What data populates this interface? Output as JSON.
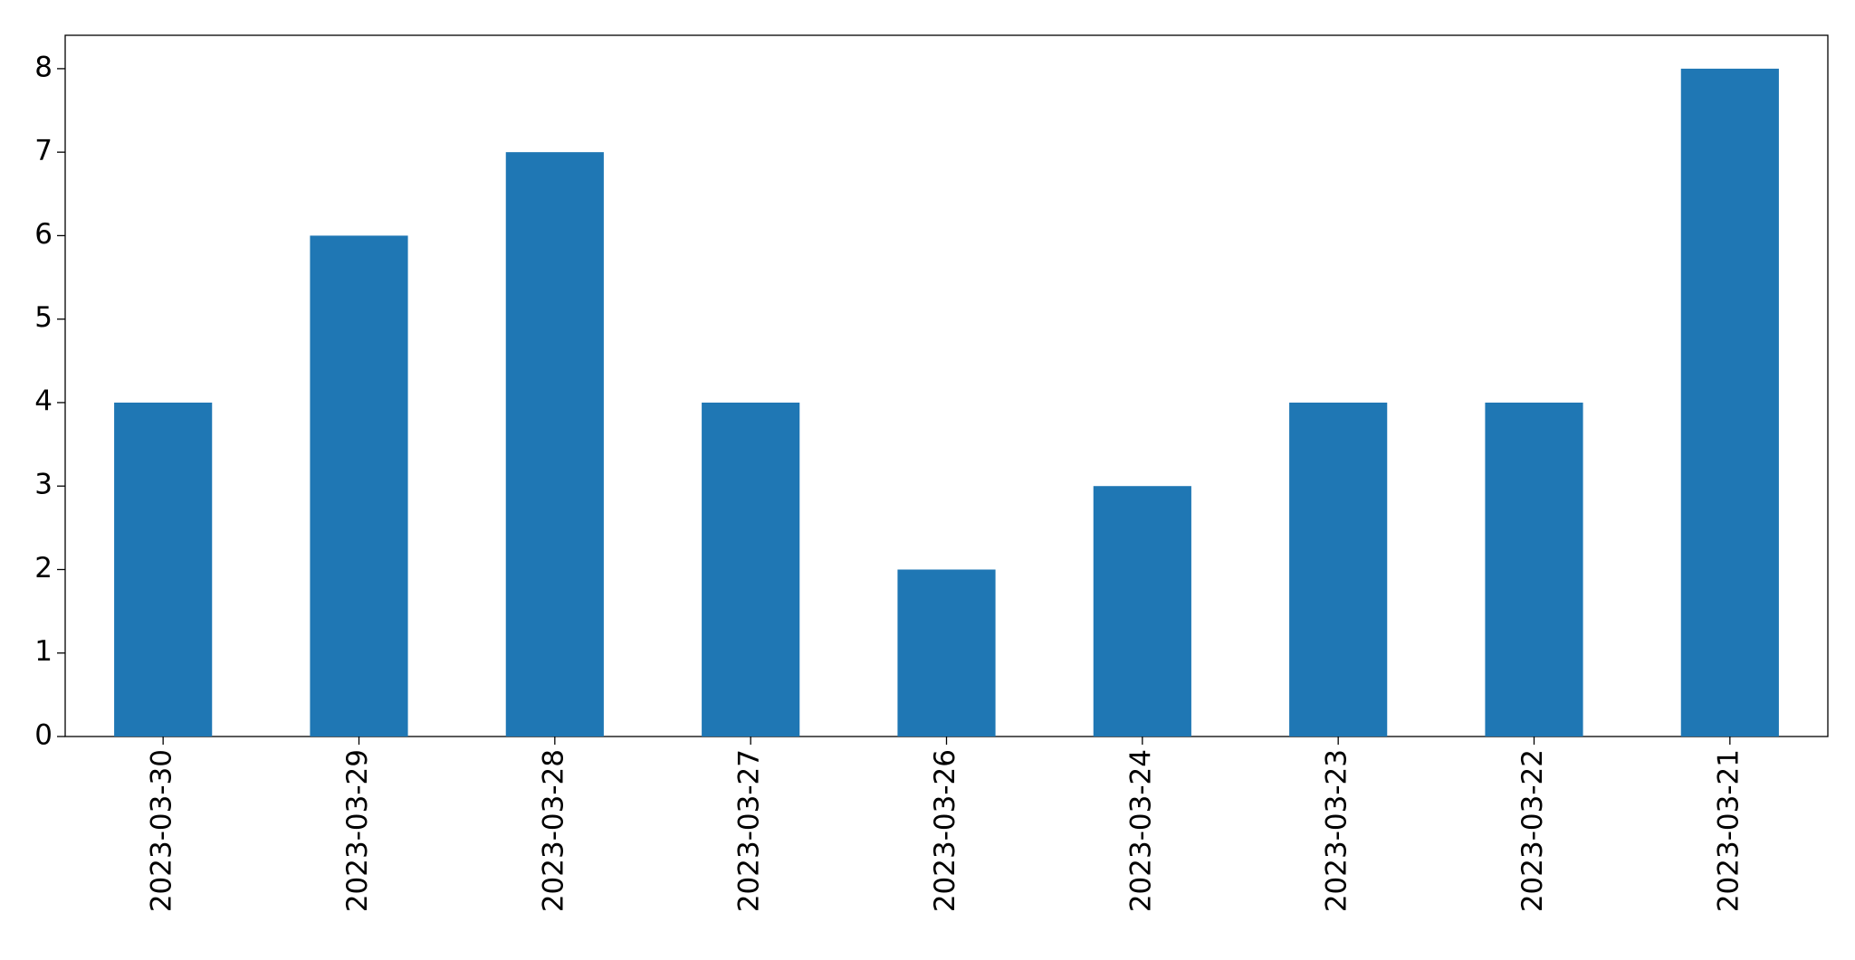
{
  "chart_data": {
    "type": "bar",
    "categories": [
      "2023-03-30",
      "2023-03-29",
      "2023-03-28",
      "2023-03-27",
      "2023-03-26",
      "2023-03-24",
      "2023-03-23",
      "2023-03-22",
      "2023-03-21"
    ],
    "values": [
      4,
      6,
      7,
      4,
      2,
      3,
      4,
      4,
      8
    ],
    "color": "#1f77b4",
    "ylim": [
      0,
      8.4
    ],
    "yticks": [
      0,
      1,
      2,
      3,
      4,
      5,
      6,
      7,
      8
    ],
    "grid": false
  }
}
